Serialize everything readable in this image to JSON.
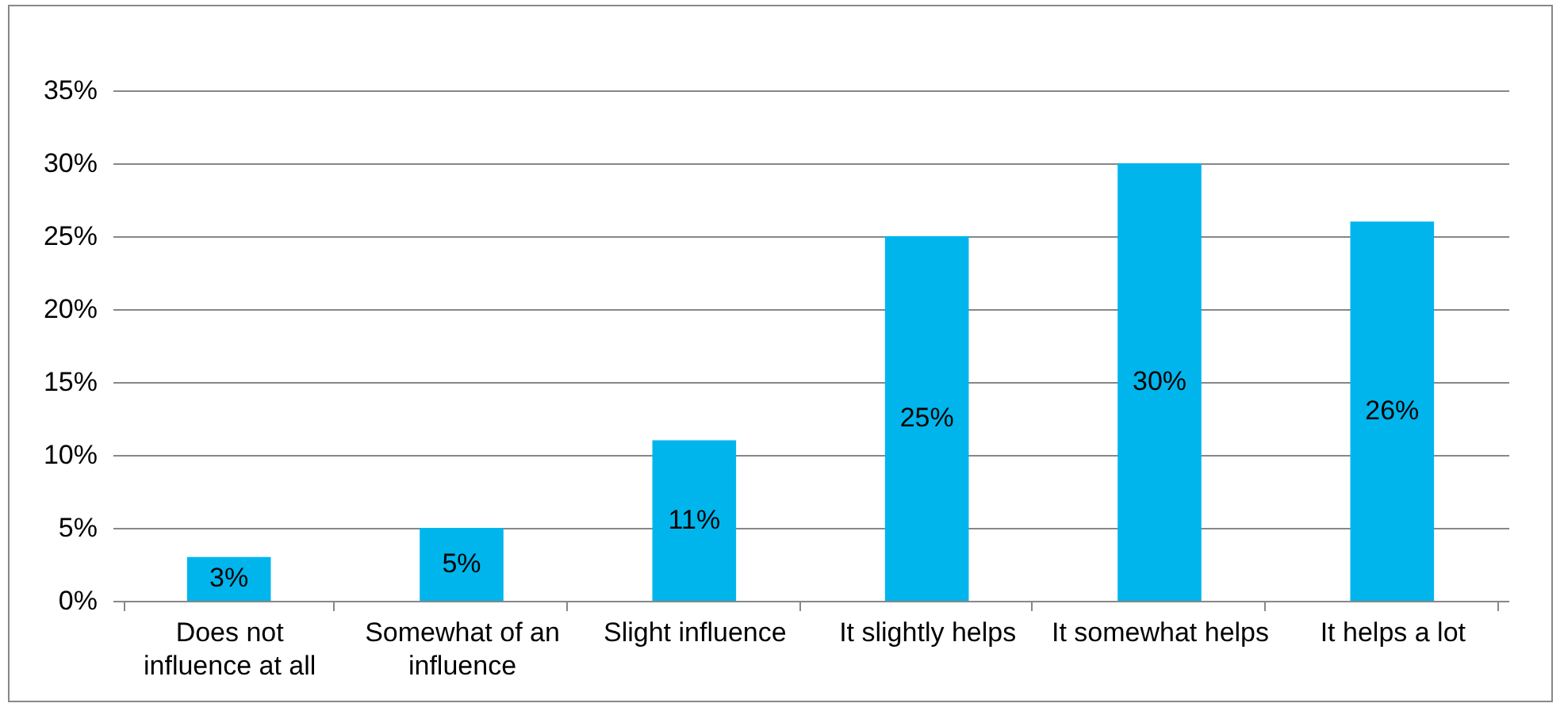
{
  "chart_data": {
    "type": "bar",
    "categories": [
      "Does not influence at all",
      "Somewhat of an influence",
      "Slight influence",
      "It slightly helps",
      "It somewhat helps",
      "It helps a lot"
    ],
    "values": [
      3,
      5,
      11,
      25,
      30,
      26
    ],
    "color": "#00b5ec",
    "ylim": [
      0,
      35
    ],
    "yticks": [
      {
        "value": 0,
        "label": "0%"
      },
      {
        "value": 5,
        "label": "5%"
      },
      {
        "value": 10,
        "label": "10%"
      },
      {
        "value": 15,
        "label": "15%"
      },
      {
        "value": 20,
        "label": "20%"
      },
      {
        "value": 25,
        "label": "25%"
      },
      {
        "value": 30,
        "label": "30%"
      },
      {
        "value": 35,
        "label": "35%"
      }
    ],
    "value_labels": [
      "3%",
      "5%",
      "11%",
      "25%",
      "30%",
      "26%"
    ],
    "grid": "y"
  }
}
